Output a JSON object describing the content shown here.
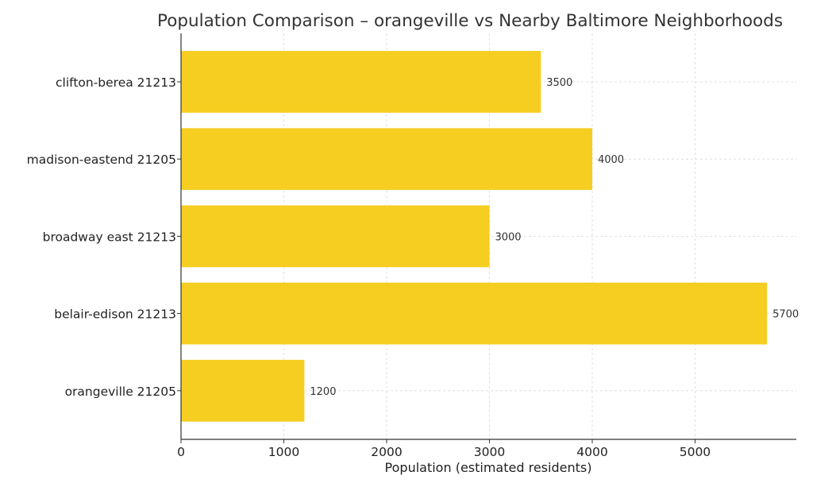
{
  "chart_data": {
    "type": "bar",
    "orientation": "horizontal",
    "title": "Population Comparison – orangeville vs Nearby Baltimore Neighborhoods",
    "xlabel": "Population (estimated residents)",
    "ylabel": "",
    "categories": [
      "clifton-berea 21213",
      "madison-eastend 21205",
      "broadway east 21213",
      "belair-edison 21213",
      "orangeville 21205"
    ],
    "values": [
      3500,
      4000,
      3000,
      5700,
      1200
    ],
    "data_labels": [
      "3500",
      "4000",
      "3000",
      "5700",
      "1200"
    ],
    "xticks": [
      "0",
      "1000",
      "2000",
      "3000",
      "4000",
      "5000"
    ],
    "xtick_values": [
      0,
      1000,
      2000,
      3000,
      4000,
      5000
    ],
    "xlim": [
      0,
      5985
    ],
    "grid": true,
    "legend": "none",
    "colors": {
      "bar": "#F6CD21",
      "text": "#333333",
      "grid": "#d9d9d9",
      "axis": "#333333"
    }
  }
}
